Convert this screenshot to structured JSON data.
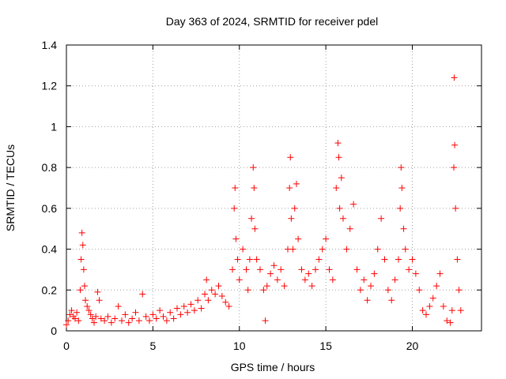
{
  "chart_data": {
    "type": "scatter",
    "title": "Day 363 of 2024, SRMTID for receiver pdel",
    "xlabel": "GPS time / hours",
    "ylabel": "SRMTID / TECUs",
    "xlim": [
      0,
      24
    ],
    "ylim": [
      0,
      1.4
    ],
    "x_ticks": [
      0,
      5,
      10,
      15,
      20
    ],
    "x_tick_labels": [
      "0",
      "5",
      "10",
      "15",
      "20"
    ],
    "y_ticks": [
      0,
      0.2,
      0.4,
      0.6,
      0.8,
      1.0,
      1.2,
      1.4
    ],
    "y_tick_labels": [
      "0",
      "0.2",
      "0.4",
      "0.6",
      "0.8",
      "1",
      "1.2",
      "1.4"
    ],
    "grid": true,
    "marker": "+",
    "color": "#ff0000",
    "series": [
      {
        "name": "SRMTID",
        "points": [
          [
            0.0,
            0.03
          ],
          [
            0.1,
            0.05
          ],
          [
            0.2,
            0.08
          ],
          [
            0.3,
            0.1
          ],
          [
            0.4,
            0.07
          ],
          [
            0.5,
            0.06
          ],
          [
            0.6,
            0.09
          ],
          [
            0.7,
            0.05
          ],
          [
            0.8,
            0.2
          ],
          [
            0.85,
            0.35
          ],
          [
            0.9,
            0.48
          ],
          [
            0.95,
            0.42
          ],
          [
            1.0,
            0.3
          ],
          [
            1.05,
            0.22
          ],
          [
            1.1,
            0.15
          ],
          [
            1.2,
            0.12
          ],
          [
            1.3,
            0.1
          ],
          [
            1.4,
            0.08
          ],
          [
            1.5,
            0.06
          ],
          [
            1.6,
            0.04
          ],
          [
            1.7,
            0.07
          ],
          [
            1.8,
            0.19
          ],
          [
            1.9,
            0.15
          ],
          [
            2.0,
            0.06
          ],
          [
            2.2,
            0.05
          ],
          [
            2.4,
            0.07
          ],
          [
            2.6,
            0.04
          ],
          [
            2.8,
            0.06
          ],
          [
            3.0,
            0.12
          ],
          [
            3.2,
            0.05
          ],
          [
            3.4,
            0.08
          ],
          [
            3.6,
            0.04
          ],
          [
            3.8,
            0.06
          ],
          [
            4.0,
            0.09
          ],
          [
            4.2,
            0.05
          ],
          [
            4.4,
            0.18
          ],
          [
            4.6,
            0.07
          ],
          [
            4.8,
            0.05
          ],
          [
            5.0,
            0.08
          ],
          [
            5.2,
            0.06
          ],
          [
            5.4,
            0.1
          ],
          [
            5.6,
            0.07
          ],
          [
            5.8,
            0.05
          ],
          [
            6.0,
            0.09
          ],
          [
            6.2,
            0.06
          ],
          [
            6.4,
            0.11
          ],
          [
            6.6,
            0.08
          ],
          [
            6.8,
            0.12
          ],
          [
            7.0,
            0.09
          ],
          [
            7.2,
            0.13
          ],
          [
            7.4,
            0.1
          ],
          [
            7.6,
            0.15
          ],
          [
            7.8,
            0.11
          ],
          [
            8.0,
            0.18
          ],
          [
            8.1,
            0.25
          ],
          [
            8.2,
            0.15
          ],
          [
            8.4,
            0.2
          ],
          [
            8.6,
            0.18
          ],
          [
            8.8,
            0.22
          ],
          [
            9.0,
            0.17
          ],
          [
            9.2,
            0.14
          ],
          [
            9.4,
            0.12
          ],
          [
            9.6,
            0.3
          ],
          [
            9.7,
            0.6
          ],
          [
            9.75,
            0.7
          ],
          [
            9.8,
            0.45
          ],
          [
            9.9,
            0.35
          ],
          [
            10.0,
            0.25
          ],
          [
            10.2,
            0.4
          ],
          [
            10.4,
            0.3
          ],
          [
            10.5,
            0.2
          ],
          [
            10.6,
            0.35
          ],
          [
            10.7,
            0.55
          ],
          [
            10.8,
            0.8
          ],
          [
            10.85,
            0.7
          ],
          [
            10.9,
            0.5
          ],
          [
            11.0,
            0.35
          ],
          [
            11.2,
            0.3
          ],
          [
            11.4,
            0.2
          ],
          [
            11.5,
            0.05
          ],
          [
            11.6,
            0.22
          ],
          [
            11.8,
            0.28
          ],
          [
            12.0,
            0.32
          ],
          [
            12.2,
            0.25
          ],
          [
            12.4,
            0.3
          ],
          [
            12.6,
            0.22
          ],
          [
            12.8,
            0.4
          ],
          [
            12.9,
            0.7
          ],
          [
            12.95,
            0.85
          ],
          [
            13.0,
            0.55
          ],
          [
            13.1,
            0.4
          ],
          [
            13.2,
            0.6
          ],
          [
            13.3,
            0.72
          ],
          [
            13.4,
            0.45
          ],
          [
            13.6,
            0.3
          ],
          [
            13.8,
            0.25
          ],
          [
            14.0,
            0.28
          ],
          [
            14.2,
            0.22
          ],
          [
            14.4,
            0.3
          ],
          [
            14.6,
            0.35
          ],
          [
            14.8,
            0.4
          ],
          [
            15.0,
            0.45
          ],
          [
            15.2,
            0.3
          ],
          [
            15.4,
            0.25
          ],
          [
            15.6,
            0.7
          ],
          [
            15.7,
            0.92
          ],
          [
            15.75,
            0.85
          ],
          [
            15.8,
            0.6
          ],
          [
            15.9,
            0.75
          ],
          [
            16.0,
            0.55
          ],
          [
            16.2,
            0.4
          ],
          [
            16.4,
            0.5
          ],
          [
            16.6,
            0.62
          ],
          [
            16.8,
            0.3
          ],
          [
            17.0,
            0.2
          ],
          [
            17.2,
            0.25
          ],
          [
            17.4,
            0.15
          ],
          [
            17.6,
            0.22
          ],
          [
            17.8,
            0.28
          ],
          [
            18.0,
            0.4
          ],
          [
            18.2,
            0.55
          ],
          [
            18.4,
            0.35
          ],
          [
            18.6,
            0.2
          ],
          [
            18.8,
            0.15
          ],
          [
            19.0,
            0.25
          ],
          [
            19.2,
            0.35
          ],
          [
            19.3,
            0.6
          ],
          [
            19.35,
            0.8
          ],
          [
            19.4,
            0.7
          ],
          [
            19.5,
            0.5
          ],
          [
            19.6,
            0.4
          ],
          [
            19.8,
            0.3
          ],
          [
            20.0,
            0.35
          ],
          [
            20.2,
            0.28
          ],
          [
            20.4,
            0.2
          ],
          [
            20.6,
            0.1
          ],
          [
            20.8,
            0.08
          ],
          [
            21.0,
            0.12
          ],
          [
            21.2,
            0.16
          ],
          [
            21.4,
            0.22
          ],
          [
            21.6,
            0.28
          ],
          [
            21.8,
            0.12
          ],
          [
            22.0,
            0.05
          ],
          [
            22.2,
            0.04
          ],
          [
            22.3,
            0.1
          ],
          [
            22.4,
            0.8
          ],
          [
            22.42,
            1.24
          ],
          [
            22.45,
            0.91
          ],
          [
            22.5,
            0.6
          ],
          [
            22.6,
            0.35
          ],
          [
            22.7,
            0.2
          ],
          [
            22.8,
            0.1
          ]
        ]
      }
    ]
  }
}
